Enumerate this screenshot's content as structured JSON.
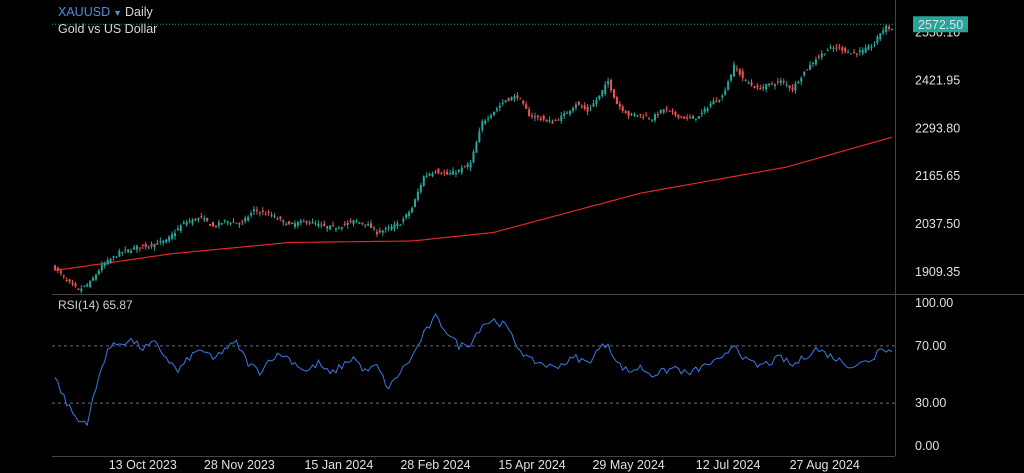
{
  "header": {
    "symbol": "XAUUSD",
    "interval": "Daily",
    "description": "Gold vs US Dollar"
  },
  "rsi": {
    "label": "RSI(14)",
    "value": "65.87"
  },
  "colors": {
    "up": "#26a69a",
    "down": "#ef5350",
    "ma": "#e0262b",
    "rsi_line": "#3a78e6",
    "grid": "#3a3a3a",
    "price_tag": "#26a69a",
    "accent": "#4a8fe0"
  },
  "chart_data": [
    {
      "type": "candlestick",
      "ylim": [
        1850,
        2600
      ],
      "y_ticks": [
        "2550.10",
        "2421.95",
        "2293.80",
        "2165.65",
        "2037.50",
        "1909.35"
      ],
      "last_price": "2572.50",
      "x_ticks": [
        "13 Oct 2023",
        "28 Nov 2023",
        "15 Jan 2024",
        "28 Feb 2024",
        "15 Apr 2024",
        "29 May 2024",
        "12 Jul 2024",
        "27 Aug 2024"
      ],
      "price_keypoints": [
        [
          0,
          1920
        ],
        [
          4,
          1885
        ],
        [
          8,
          1860
        ],
        [
          12,
          1880
        ],
        [
          16,
          1925
        ],
        [
          22,
          1960
        ],
        [
          28,
          1975
        ],
        [
          32,
          1980
        ],
        [
          38,
          1992
        ],
        [
          44,
          2040
        ],
        [
          50,
          2055
        ],
        [
          54,
          2030
        ],
        [
          58,
          2045
        ],
        [
          64,
          2040
        ],
        [
          68,
          2075
        ],
        [
          74,
          2060
        ],
        [
          80,
          2035
        ],
        [
          86,
          2045
        ],
        [
          92,
          2030
        ],
        [
          96,
          2028
        ],
        [
          102,
          2045
        ],
        [
          106,
          2040
        ],
        [
          110,
          2015
        ],
        [
          114,
          2025
        ],
        [
          118,
          2040
        ],
        [
          122,
          2080
        ],
        [
          126,
          2165
        ],
        [
          130,
          2180
        ],
        [
          134,
          2170
        ],
        [
          138,
          2180
        ],
        [
          142,
          2200
        ],
        [
          146,
          2310
        ],
        [
          150,
          2340
        ],
        [
          154,
          2370
        ],
        [
          158,
          2380
        ],
        [
          162,
          2330
        ],
        [
          166,
          2320
        ],
        [
          170,
          2310
        ],
        [
          174,
          2330
        ],
        [
          178,
          2360
        ],
        [
          182,
          2340
        ],
        [
          186,
          2380
        ],
        [
          189,
          2420
        ],
        [
          192,
          2360
        ],
        [
          196,
          2330
        ],
        [
          200,
          2330
        ],
        [
          204,
          2320
        ],
        [
          208,
          2345
        ],
        [
          212,
          2330
        ],
        [
          216,
          2320
        ],
        [
          220,
          2325
        ],
        [
          224,
          2360
        ],
        [
          228,
          2380
        ],
        [
          232,
          2460
        ],
        [
          236,
          2420
        ],
        [
          240,
          2400
        ],
        [
          244,
          2410
        ],
        [
          248,
          2420
        ],
        [
          252,
          2400
        ],
        [
          256,
          2445
        ],
        [
          260,
          2480
        ],
        [
          264,
          2505
        ],
        [
          268,
          2510
        ],
        [
          272,
          2495
        ],
        [
          276,
          2500
        ],
        [
          280,
          2520
        ],
        [
          282,
          2550
        ],
        [
          284,
          2565
        ],
        [
          286,
          2560
        ]
      ],
      "ma_keypoints": [
        [
          0,
          1913
        ],
        [
          40,
          1958
        ],
        [
          80,
          1988
        ],
        [
          122,
          1992
        ],
        [
          150,
          2015
        ],
        [
          200,
          2120
        ],
        [
          250,
          2190
        ],
        [
          286,
          2270
        ]
      ]
    },
    {
      "type": "line",
      "ylim": [
        0,
        100
      ],
      "y_ticks": [
        "100.00",
        "70.00",
        "30.00",
        "0.00"
      ],
      "levels": [
        70,
        30
      ],
      "rsi_keypoints": [
        [
          0,
          48
        ],
        [
          4,
          30
        ],
        [
          8,
          17
        ],
        [
          11,
          17
        ],
        [
          14,
          40
        ],
        [
          16,
          55
        ],
        [
          18,
          68
        ],
        [
          22,
          72
        ],
        [
          26,
          74
        ],
        [
          30,
          68
        ],
        [
          34,
          72
        ],
        [
          38,
          62
        ],
        [
          42,
          52
        ],
        [
          46,
          62
        ],
        [
          50,
          68
        ],
        [
          54,
          60
        ],
        [
          58,
          68
        ],
        [
          62,
          72
        ],
        [
          66,
          58
        ],
        [
          70,
          52
        ],
        [
          74,
          62
        ],
        [
          78,
          64
        ],
        [
          82,
          58
        ],
        [
          86,
          52
        ],
        [
          90,
          58
        ],
        [
          94,
          50
        ],
        [
          98,
          56
        ],
        [
          102,
          62
        ],
        [
          106,
          52
        ],
        [
          110,
          56
        ],
        [
          114,
          40
        ],
        [
          118,
          52
        ],
        [
          122,
          62
        ],
        [
          126,
          78
        ],
        [
          130,
          90
        ],
        [
          134,
          80
        ],
        [
          138,
          70
        ],
        [
          142,
          72
        ],
        [
          146,
          85
        ],
        [
          150,
          88
        ],
        [
          154,
          84
        ],
        [
          158,
          70
        ],
        [
          162,
          60
        ],
        [
          166,
          58
        ],
        [
          170,
          55
        ],
        [
          174,
          58
        ],
        [
          178,
          62
        ],
        [
          182,
          58
        ],
        [
          186,
          68
        ],
        [
          189,
          72
        ],
        [
          192,
          58
        ],
        [
          196,
          52
        ],
        [
          200,
          55
        ],
        [
          204,
          50
        ],
        [
          208,
          52
        ],
        [
          212,
          55
        ],
        [
          216,
          50
        ],
        [
          220,
          54
        ],
        [
          224,
          58
        ],
        [
          228,
          60
        ],
        [
          232,
          72
        ],
        [
          236,
          60
        ],
        [
          240,
          56
        ],
        [
          244,
          58
        ],
        [
          248,
          62
        ],
        [
          252,
          56
        ],
        [
          256,
          62
        ],
        [
          260,
          68
        ],
        [
          264,
          64
        ],
        [
          268,
          60
        ],
        [
          272,
          56
        ],
        [
          276,
          58
        ],
        [
          280,
          62
        ],
        [
          282,
          70
        ],
        [
          284,
          68
        ],
        [
          286,
          65.87
        ]
      ]
    }
  ]
}
